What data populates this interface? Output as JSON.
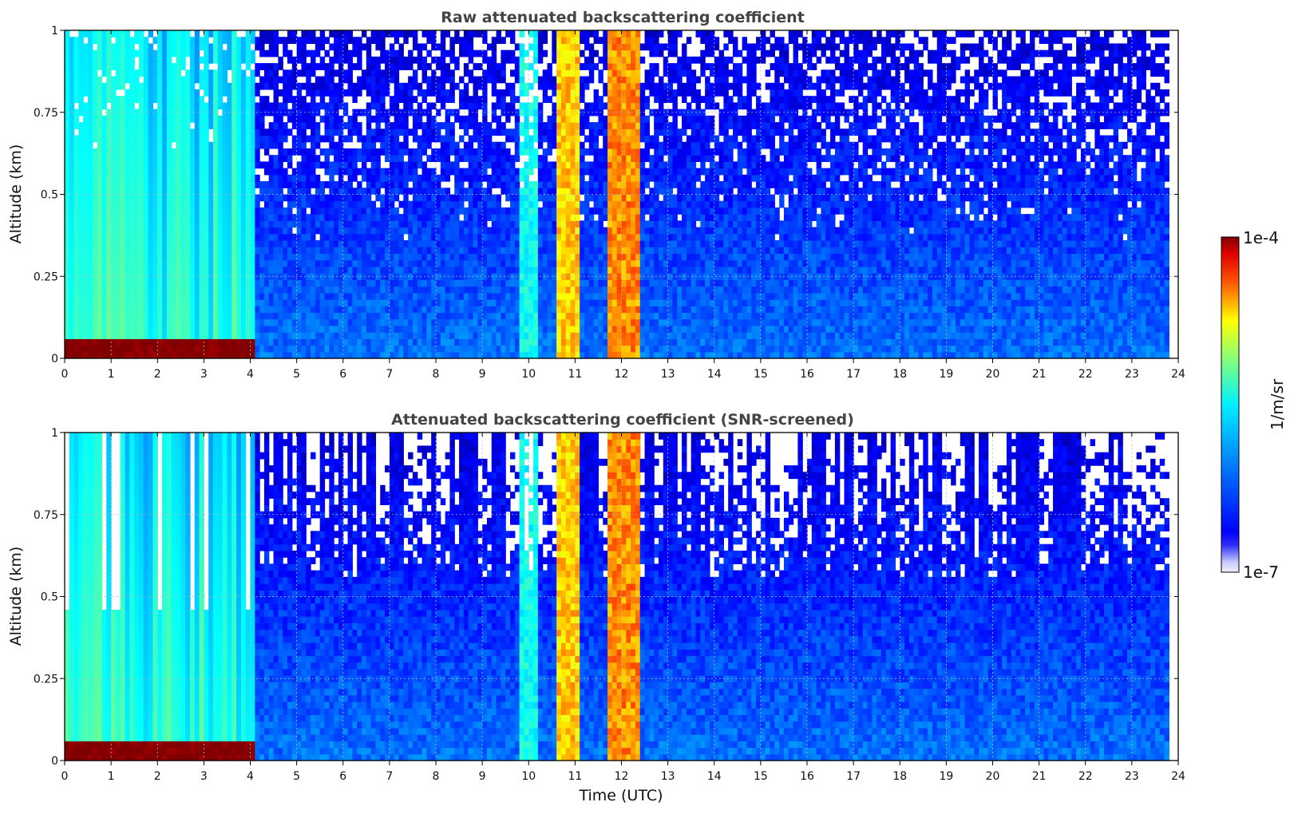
{
  "chart_data": {
    "type": "heatmap",
    "colormap": "jet",
    "x": {
      "label": "Time (UTC)",
      "lim": [
        0,
        24
      ],
      "ticks": [
        0,
        1,
        2,
        3,
        4,
        5,
        6,
        7,
        8,
        9,
        10,
        11,
        12,
        13,
        14,
        15,
        16,
        17,
        18,
        19,
        20,
        21,
        22,
        23,
        24
      ]
    },
    "y": {
      "label": "Altitude (km)",
      "lim": [
        0,
        1
      ],
      "ticks": [
        0,
        0.25,
        0.5,
        0.75,
        1
      ],
      "tick_labels": [
        "0",
        "0.25",
        "0.5",
        "0.75",
        "1"
      ]
    },
    "grid": true,
    "colorbar": {
      "label": "1/m/sr",
      "scale": "log",
      "min_label": "1e-7",
      "max_label": "1e-4",
      "range": [
        1e-07,
        0.0001
      ]
    },
    "panels": [
      {
        "title": "Raw attenuated backscattering coefficient",
        "snr_screened": false,
        "data_end_hour": 23.8,
        "clouds": [
          {
            "x_start": 10.65,
            "x_end": 11.1,
            "log10_value": -5.1
          },
          {
            "x_start": 11.75,
            "x_end": 12.45,
            "log10_value": -4.9
          }
        ],
        "boundary_layer": {
          "x_start": 0.0,
          "x_end": 4.15,
          "top_km": 0.06,
          "log10_value": -4.0
        },
        "high_background": {
          "x_start": 0.0,
          "x_end": 4.1,
          "log10_value": -6.0
        }
      },
      {
        "title": "Attenuated backscattering coefficient (SNR-screened)",
        "snr_screened": true,
        "data_end_hour": 23.8,
        "clouds": [
          {
            "x_start": 10.65,
            "x_end": 11.1,
            "log10_value": -5.1
          },
          {
            "x_start": 11.75,
            "x_end": 12.45,
            "log10_value": -4.9
          }
        ],
        "boundary_layer": {
          "x_start": 0.0,
          "x_end": 4.15,
          "top_km": 0.06,
          "log10_value": -4.0
        },
        "high_background": {
          "x_start": 0.0,
          "x_end": 4.1,
          "log10_value": -6.0
        }
      }
    ]
  }
}
